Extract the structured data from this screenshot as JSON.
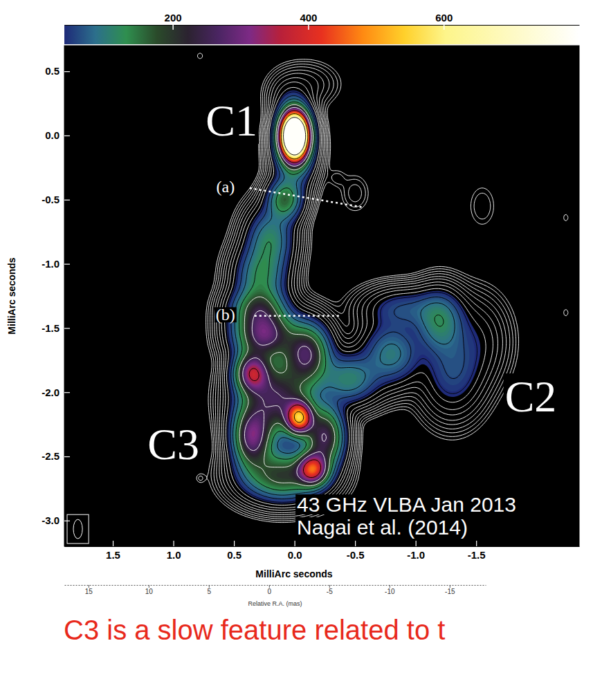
{
  "chart_data": {
    "type": "image",
    "xlabel": "MilliArc seconds",
    "ylabel": "MilliArc seconds",
    "xlim": [
      1.9,
      -2.35
    ],
    "xticks": [
      1.5,
      {
        "value": 1,
        "label": "1.0"
      },
      0.5,
      {
        "value": 0,
        "label": "0.0"
      },
      -0.5,
      {
        "value": -1,
        "label": "-1.0"
      },
      -1.5
    ],
    "ylim": [
      -3.2,
      0.7
    ],
    "yticks": [
      0.5,
      {
        "value": 0,
        "label": "0.0"
      },
      -0.5,
      {
        "value": -1,
        "label": "-1.0"
      },
      -1.5,
      {
        "value": -2,
        "label": "-2.0"
      },
      -2.5,
      {
        "value": -3,
        "label": "-3.0"
      }
    ],
    "colorbar": {
      "range": [
        40,
        800
      ],
      "ticks": [
        200,
        400,
        600
      ]
    },
    "contour_levels": [
      2,
      2.8,
      4,
      5.6,
      8,
      11,
      16,
      22,
      32,
      45,
      64,
      90,
      128,
      181,
      256,
      362,
      512,
      724,
      1024
    ],
    "components": [
      {
        "x": 0,
        "y": 0,
        "peak": 1500,
        "sx": 0.07,
        "sy": 0.11
      },
      {
        "x": 0,
        "y": -0.1,
        "peak": 150,
        "sx": 0.1,
        "sy": 0.18
      },
      {
        "x": -0.1,
        "y": 0.4,
        "peak": 12,
        "sx": 0.15,
        "sy": 0.1
      },
      {
        "x": 0.05,
        "y": 0.3,
        "peak": 20,
        "sx": 0.1,
        "sy": 0.1
      },
      {
        "x": 0.08,
        "y": -0.5,
        "peak": 150,
        "sx": 0.09,
        "sy": 0.1
      },
      {
        "x": 0.2,
        "y": -0.8,
        "peak": 110,
        "sx": 0.12,
        "sy": 0.15
      },
      {
        "x": 0.28,
        "y": -1.1,
        "peak": 120,
        "sx": 0.13,
        "sy": 0.15
      },
      {
        "x": 0.3,
        "y": -1.35,
        "peak": 150,
        "sx": 0.14,
        "sy": 0.1
      },
      {
        "x": 0.25,
        "y": -1.55,
        "peak": 280,
        "sx": 0.15,
        "sy": 0.12
      },
      {
        "x": 0.35,
        "y": -1.85,
        "peak": 300,
        "sx": 0.09,
        "sy": 0.1
      },
      {
        "x": -0.1,
        "y": -1.7,
        "peak": 250,
        "sx": 0.12,
        "sy": 0.15
      },
      {
        "x": -0.04,
        "y": -2.2,
        "peak": 450,
        "sx": 0.07,
        "sy": 0.08
      },
      {
        "x": 0.15,
        "y": -2.05,
        "peak": 250,
        "sx": 0.18,
        "sy": 0.18
      },
      {
        "x": 0.35,
        "y": -2.35,
        "peak": 280,
        "sx": 0.1,
        "sy": 0.15
      },
      {
        "x": -0.25,
        "y": -2.35,
        "peak": 250,
        "sx": 0.1,
        "sy": 0.15
      },
      {
        "x": -0.15,
        "y": -2.6,
        "peak": 350,
        "sx": 0.08,
        "sy": 0.08
      },
      {
        "x": 0.1,
        "y": -2.65,
        "peak": 200,
        "sx": 0.2,
        "sy": 0.12
      },
      {
        "x": -0.45,
        "y": -1.9,
        "peak": 110,
        "sx": 0.15,
        "sy": 0.12
      },
      {
        "x": -0.8,
        "y": -1.7,
        "peak": 100,
        "sx": 0.15,
        "sy": 0.15
      },
      {
        "x": -1.2,
        "y": -1.45,
        "peak": 110,
        "sx": 0.12,
        "sy": 0.15
      },
      {
        "x": -1.3,
        "y": -1.85,
        "peak": 60,
        "sx": 0.15,
        "sy": 0.2
      },
      {
        "x": -0.9,
        "y": -1.35,
        "peak": 60,
        "sx": 0.2,
        "sy": 0.1
      },
      {
        "x": -1.5,
        "y": -1.6,
        "peak": 30,
        "sx": 0.15,
        "sy": 0.2
      },
      {
        "x": -0.5,
        "y": -0.45,
        "peak": 5,
        "sx": 0.08,
        "sy": 0.1
      },
      {
        "x": -0.35,
        "y": -0.33,
        "peak": 3,
        "sx": 0.05,
        "sy": 0.05
      },
      {
        "x": -1.55,
        "y": -0.55,
        "peak": 4,
        "sx": 0.08,
        "sy": 0.12
      },
      {
        "x": 0.78,
        "y": 0.62,
        "peak": 2.6,
        "sx": 0.03,
        "sy": 0.03
      },
      {
        "x": 0.78,
        "y": -2.67,
        "peak": 2.6,
        "sx": 0.03,
        "sy": 0.03
      },
      {
        "x": -2.24,
        "y": -0.64,
        "peak": 2.6,
        "sx": 0.025,
        "sy": 0.035
      },
      {
        "x": -2.24,
        "y": -1.38,
        "peak": 2.6,
        "sx": 0.025,
        "sy": 0.035
      }
    ],
    "beam": {
      "width": 0.075,
      "height": 0.15
    },
    "annotations": [
      "C1",
      "C2",
      "C3",
      "(a)",
      "(b)",
      "43 GHz VLBA Jan 2013",
      "Nagai et al. (2014)"
    ],
    "caption": "C3 is a slow feature related to t",
    "x2label": "Relative R.A. (mas)",
    "x2lim": [
      17,
      -18
    ],
    "x2ticks": [
      15,
      10,
      5,
      0,
      -5,
      -10,
      -15
    ]
  }
}
